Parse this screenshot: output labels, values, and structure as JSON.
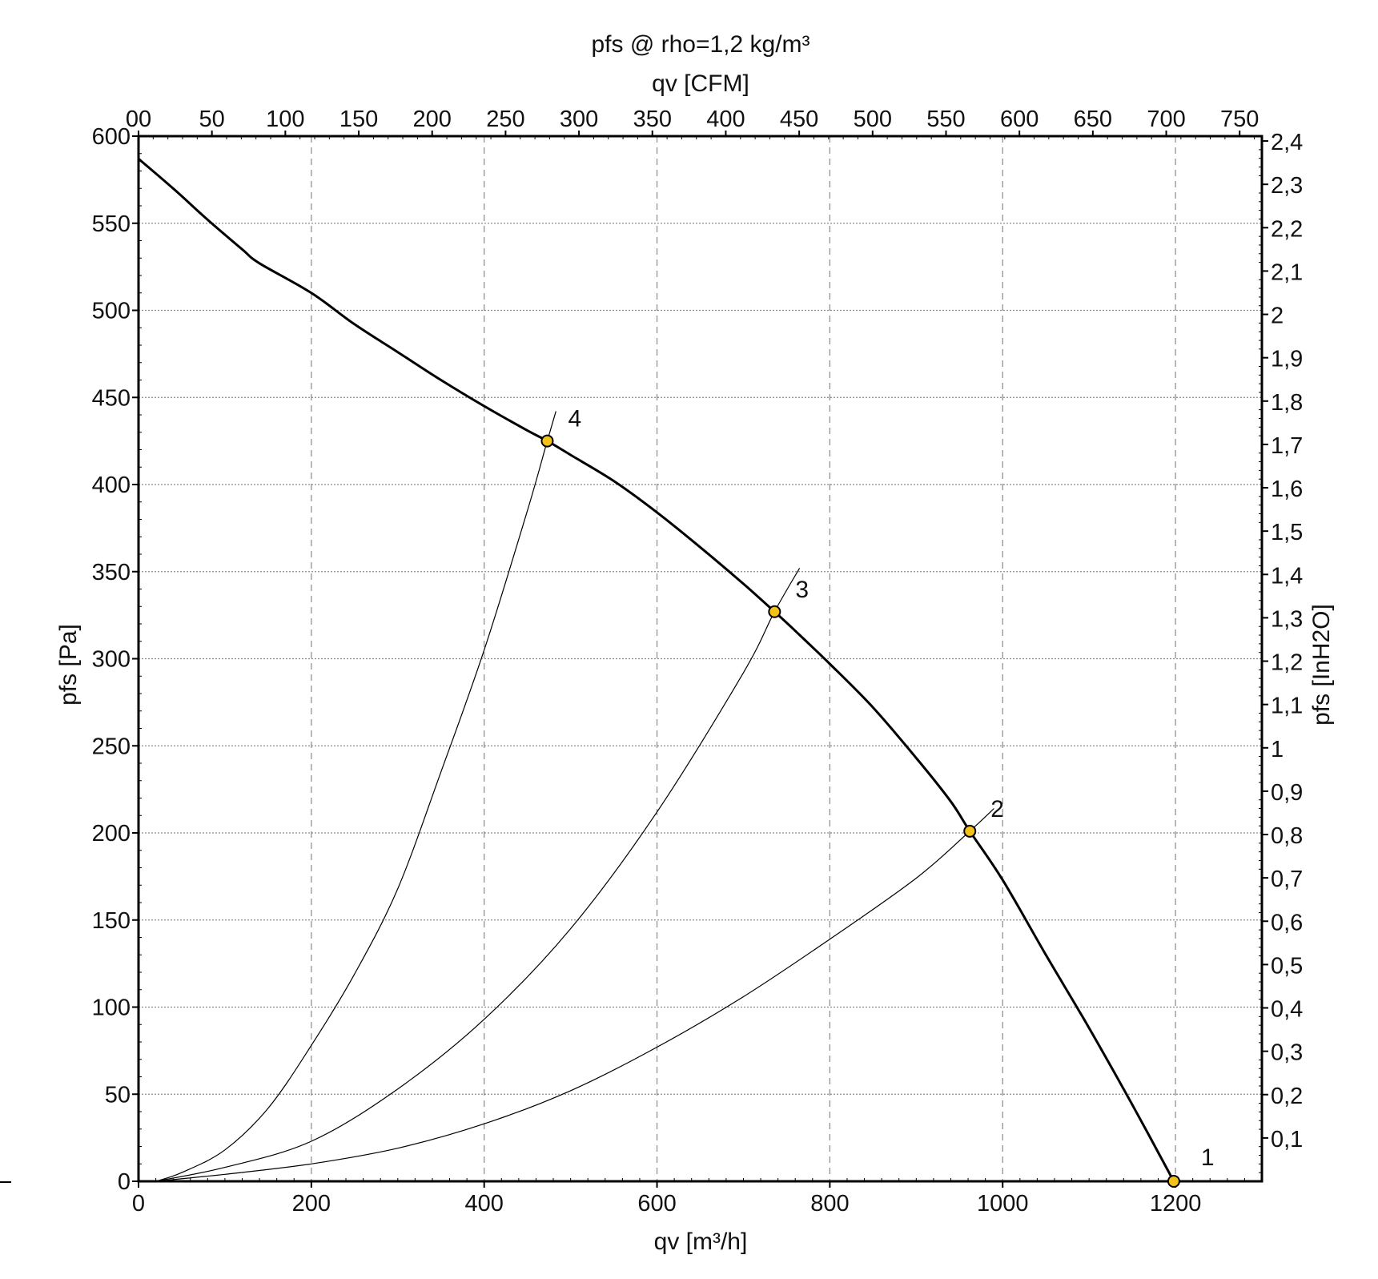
{
  "chart_data": {
    "type": "line",
    "title": "pfs @ rho=1,2 kg/m³",
    "xlabel": "qv [m³/h]",
    "xlabel_top": "qv [CFM]",
    "ylabel": "pfs [Pa]",
    "ylabel_right": "pfs [InH2O]",
    "xlim": [
      0,
      1300
    ],
    "ylim": [
      0,
      600
    ],
    "ylim_right": [
      0,
      2.4
    ],
    "grid": true,
    "x_ticks": [
      "0",
      "200",
      "400",
      "600",
      "800",
      "1000",
      "1200"
    ],
    "y_ticks": [
      "0",
      "50",
      "100",
      "150",
      "200",
      "250",
      "300",
      "350",
      "400",
      "450",
      "500",
      "550",
      "600"
    ],
    "top_ticks": [
      "00",
      "50",
      "100",
      "150",
      "200",
      "250",
      "300",
      "350",
      "400",
      "450",
      "500",
      "550",
      "600",
      "650",
      "700",
      "750"
    ],
    "right_ticks": [
      "0,1",
      "0,2",
      "0,3",
      "0,4",
      "0,5",
      "0,6",
      "0,7",
      "0,8",
      "0,9",
      "1",
      "1,1",
      "1,2",
      "1,3",
      "1,4",
      "1,5",
      "1,6",
      "1,7",
      "1,8",
      "1,9",
      "2",
      "2,1",
      "2,2",
      "2,3",
      "2,4"
    ],
    "series": [
      {
        "role": "fan-curve",
        "x": [
          0,
          40,
          80,
          120,
          140,
          200,
          250,
          300,
          350,
          400,
          450,
          473,
          500,
          550,
          600,
          650,
          700,
          736,
          760,
          800,
          850,
          900,
          940,
          962,
          1000,
          1050,
          1100,
          1150,
          1198
        ],
        "y": [
          587,
          570,
          552,
          535,
          527,
          510,
          492,
          476,
          460,
          445,
          431,
          425,
          417,
          402,
          384,
          364,
          343,
          327,
          316,
          297,
          272,
          243,
          218,
          201,
          173,
          130,
          88,
          44,
          0
        ]
      },
      {
        "role": "system-curve-2",
        "x": [
          20,
          100,
          200,
          300,
          400,
          500,
          600,
          700,
          800,
          900,
          962,
          990
        ],
        "y": [
          0,
          4,
          10,
          19,
          33,
          52,
          77,
          106,
          139,
          174,
          201,
          214
        ]
      },
      {
        "role": "system-curve-3",
        "x": [
          20,
          100,
          200,
          300,
          400,
          500,
          600,
          700,
          736,
          765
        ],
        "y": [
          0,
          8,
          23,
          53,
          93,
          145,
          212,
          292,
          327,
          352
        ]
      },
      {
        "role": "system-curve-4",
        "x": [
          20,
          50,
          100,
          150,
          200,
          250,
          300,
          350,
          400,
          450,
          473,
          483
        ],
        "y": [
          0,
          5,
          18,
          42,
          78,
          119,
          168,
          235,
          305,
          385,
          425,
          442
        ]
      }
    ],
    "points": [
      {
        "label": "1",
        "x": 1198,
        "y": 0
      },
      {
        "label": "2",
        "x": 962,
        "y": 201
      },
      {
        "label": "3",
        "x": 736,
        "y": 327
      },
      {
        "label": "4",
        "x": 473,
        "y": 425
      }
    ],
    "point_color": "#f2c21b"
  }
}
